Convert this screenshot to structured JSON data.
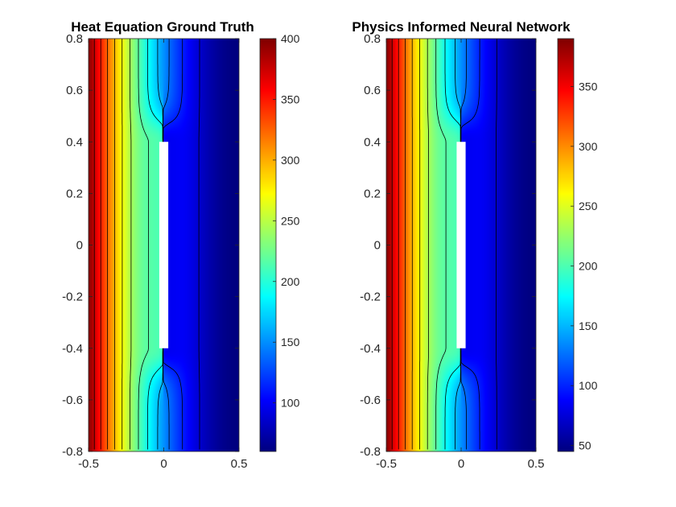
{
  "chart_data": [
    {
      "type": "heatmap",
      "title": "Heat Equation Ground Truth",
      "xlabel": "",
      "ylabel": "",
      "xlim": [
        -0.5,
        0.5
      ],
      "ylim": [
        -0.8,
        0.8
      ],
      "x_ticks": [
        -0.5,
        0,
        0.5
      ],
      "x_tick_labels": [
        "-0.5",
        "0",
        "0.5"
      ],
      "y_ticks": [
        -0.8,
        -0.6,
        -0.4,
        -0.2,
        0,
        0.2,
        0.4,
        0.6,
        0.8
      ],
      "y_tick_labels": [
        "-0.8",
        "-0.6",
        "-0.4",
        "-0.2",
        "0",
        "0.2",
        "0.4",
        "0.6",
        "0.8"
      ],
      "colormap": "jet",
      "clim": [
        60,
        400
      ],
      "colorbar_ticks": [
        100,
        150,
        200,
        250,
        300,
        350,
        400
      ],
      "colorbar_tick_labels": [
        "100",
        "150",
        "200",
        "250",
        "300",
        "350",
        "400"
      ],
      "hot_boundary_value": 400,
      "cold_boundary_value": 60,
      "obstacle": {
        "x": [
          -0.03,
          0.03
        ],
        "y": [
          -0.4,
          0.4
        ]
      },
      "contour_count": 12
    },
    {
      "type": "heatmap",
      "title": "Physics Informed Neural Network",
      "xlabel": "",
      "ylabel": "",
      "xlim": [
        -0.5,
        0.5
      ],
      "ylim": [
        -0.8,
        0.8
      ],
      "x_ticks": [
        -0.5,
        0,
        0.5
      ],
      "x_tick_labels": [
        "-0.5",
        "0",
        "0.5"
      ],
      "y_ticks": [
        -0.8,
        -0.6,
        -0.4,
        -0.2,
        0,
        0.2,
        0.4,
        0.6,
        0.8
      ],
      "y_tick_labels": [
        "-0.8",
        "-0.6",
        "-0.4",
        "-0.2",
        "0",
        "0.2",
        "0.4",
        "0.6",
        "0.8"
      ],
      "colormap": "jet",
      "clim": [
        45,
        390
      ],
      "colorbar_ticks": [
        50,
        100,
        150,
        200,
        250,
        300,
        350
      ],
      "colorbar_tick_labels": [
        "50",
        "100",
        "150",
        "200",
        "250",
        "300",
        "350"
      ],
      "hot_boundary_value": 390,
      "cold_boundary_value": 45,
      "obstacle": {
        "x": [
          -0.03,
          0.03
        ],
        "y": [
          -0.4,
          0.4
        ]
      },
      "contour_count": 12
    }
  ]
}
